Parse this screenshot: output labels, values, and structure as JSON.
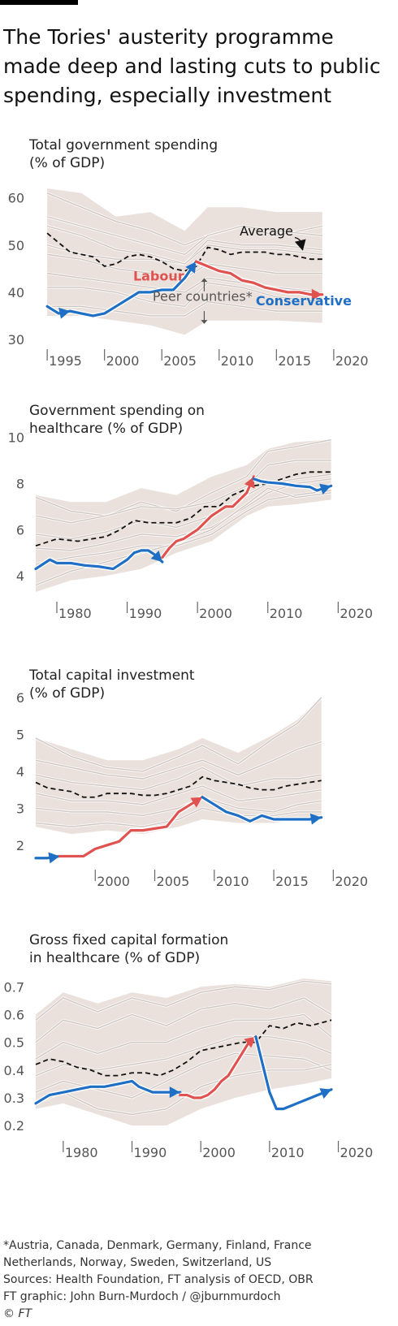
{
  "headline": "The Tories' austerity programme made deep and lasting cuts to public spending, especially investment",
  "colors": {
    "labour": "#e0524f",
    "conservative": "#1f6fc5",
    "average": "#111111",
    "peer_band": "#ebe1dc",
    "peer_lines": "#cfc6c1"
  },
  "chart_data": [
    {
      "type": "line",
      "title": [
        "Total government spending",
        "(% of GDP)"
      ],
      "xticks": [
        1995,
        2000,
        2005,
        2010,
        2015,
        2020
      ],
      "xlim": [
        1994,
        2021
      ],
      "yticks": [
        30,
        40,
        50,
        60
      ],
      "ylim": [
        30,
        62
      ],
      "series": [
        {
          "name": "Average",
          "x": [
            1995,
            1996,
            1997,
            1998,
            1999,
            2000,
            2001,
            2002,
            2003,
            2004,
            2005,
            2006,
            2007,
            2008,
            2009,
            2010,
            2011,
            2012,
            2013,
            2014,
            2015,
            2016,
            2017,
            2018,
            2019
          ],
          "y": [
            52.5,
            50.5,
            48.5,
            48,
            47.5,
            45.5,
            46,
            47.5,
            48,
            47.5,
            46.5,
            45,
            44.5,
            45.5,
            49.5,
            49,
            48,
            48.5,
            48.5,
            48.5,
            48,
            48,
            47.5,
            47,
            47
          ]
        },
        {
          "name": "Labour",
          "x": [
            1997,
            1998,
            1999,
            2000,
            2001,
            2002,
            2003,
            2004,
            2005,
            2006,
            2007,
            2008
          ],
          "y": [
            36,
            35.5,
            35,
            35.5,
            37,
            38.5,
            40,
            40,
            40.5,
            40.5,
            43,
            46.5
          ]
        },
        {
          "name": "Conservative",
          "x": [
            2008,
            2009,
            2010,
            2011,
            2012,
            2013,
            2014,
            2015,
            2016,
            2017,
            2018,
            2019
          ],
          "y": [
            46.5,
            45.5,
            44.5,
            44,
            42.5,
            42,
            41,
            40.5,
            40,
            40,
            39.5,
            39.5
          ]
        },
        {
          "name": "",
          "x": [
            1995,
            1996,
            1997
          ],
          "y": [
            37,
            35.5,
            36
          ]
        }
      ],
      "peer_band": {
        "x": [
          1995,
          1998,
          2001,
          2004,
          2007,
          2009,
          2012,
          2015,
          2019
        ],
        "low": [
          35,
          35,
          34,
          33,
          31,
          34,
          34,
          34,
          33.5
        ],
        "high": [
          62,
          61,
          56,
          57,
          53,
          58,
          58,
          57,
          57
        ]
      },
      "peer_lines": [
        [
          61,
          58,
          55,
          53,
          50,
          52,
          54,
          52,
          54
        ],
        [
          56,
          54,
          52,
          50,
          48,
          52,
          54,
          53,
          52
        ],
        [
          50,
          48,
          47,
          47,
          46,
          51,
          50,
          50,
          49
        ],
        [
          48,
          47,
          45,
          44,
          43,
          46,
          45,
          44,
          44
        ],
        [
          44,
          43,
          42,
          41,
          40,
          43,
          42,
          41,
          40
        ],
        [
          41,
          41,
          40,
          38,
          37,
          42,
          41,
          39,
          38
        ],
        [
          37,
          37,
          36,
          35,
          35,
          38,
          37,
          36,
          36
        ],
        [
          54,
          52,
          49,
          48,
          46,
          50,
          49,
          49,
          48
        ]
      ],
      "annotations": [
        {
          "text": "Average",
          "x": 2011.8,
          "y": 52,
          "color": "#111111",
          "weight": "normal"
        },
        {
          "text": "Labour",
          "x": 2002.5,
          "y": 42.5,
          "color": "#e0524f",
          "weight": "bold"
        },
        {
          "text": "Peer countries*",
          "x": 2004.2,
          "y": 38.2,
          "color": "#555555",
          "weight": "normal"
        },
        {
          "text": "Conservative",
          "x": 2013.2,
          "y": 37.2,
          "color": "#1f6fc5",
          "weight": "bold"
        }
      ]
    },
    {
      "type": "line",
      "title": [
        "Government spending on",
        "healthcare (% of GDP)"
      ],
      "xticks": [
        1980,
        1990,
        2000,
        2010,
        2020
      ],
      "xlim": [
        1977,
        2021
      ],
      "yticks": [
        4,
        6,
        8,
        10
      ],
      "ylim": [
        3.3,
        10.2
      ],
      "series": [
        {
          "name": "Average",
          "x": [
            1977,
            1980,
            1983,
            1985,
            1987,
            1989,
            1991,
            1993,
            1995,
            1997,
            1999,
            2001,
            2003,
            2005,
            2008,
            2010,
            2012,
            2014,
            2016,
            2019
          ],
          "y": [
            5.3,
            5.6,
            5.5,
            5.6,
            5.7,
            6,
            6.4,
            6.3,
            6.3,
            6.3,
            6.5,
            7,
            7,
            7.5,
            7.9,
            8,
            8.2,
            8.4,
            8.5,
            8.5
          ]
        },
        {
          "name": "",
          "x": [
            1977,
            1979,
            1980,
            1982,
            1984,
            1986,
            1988,
            1990,
            1991,
            1992,
            1993,
            1994,
            1995
          ],
          "y": [
            4.3,
            4.7,
            4.55,
            4.55,
            4.45,
            4.4,
            4.3,
            4.7,
            5,
            5.1,
            5.1,
            4.9,
            4.6
          ]
        },
        {
          "name": "",
          "x": [
            1995,
            1996,
            1997,
            1998,
            1999,
            2000,
            2001,
            2002,
            2003,
            2004,
            2005,
            2006,
            2007,
            2008
          ],
          "y": [
            4.8,
            5.2,
            5.5,
            5.6,
            5.8,
            6,
            6.3,
            6.6,
            6.8,
            7,
            7,
            7.3,
            7.6,
            8.3
          ]
        },
        {
          "name": "",
          "x": [
            2008,
            2009,
            2010,
            2012,
            2014,
            2016,
            2017,
            2019
          ],
          "y": [
            8.2,
            8.1,
            8.05,
            8,
            7.9,
            7.85,
            7.7,
            7.9
          ]
        }
      ],
      "peer_band": {
        "x": [
          1977,
          1982,
          1987,
          1992,
          1997,
          2002,
          2007,
          2010,
          2014,
          2019
        ],
        "low": [
          3.3,
          3.8,
          4,
          4.3,
          5,
          5.5,
          6.6,
          7,
          7.1,
          7.3
        ],
        "high": [
          7.5,
          7.2,
          7.2,
          7.8,
          7.5,
          8.3,
          8.8,
          9.5,
          9.8,
          9.9
        ]
      },
      "peer_lines": [
        [
          7.4,
          6.8,
          6.6,
          7.2,
          6.8,
          7.6,
          8.3,
          9.4,
          9.6,
          9.9
        ],
        [
          6.6,
          6.3,
          6.6,
          7,
          6.9,
          7.2,
          7.9,
          8.8,
          9,
          9
        ],
        [
          5.8,
          5.6,
          5.9,
          6.4,
          6.1,
          6.6,
          7.5,
          8,
          8.2,
          8.4
        ],
        [
          5.2,
          5.1,
          5.4,
          5.8,
          5.7,
          6.1,
          7,
          7.6,
          8,
          8.2
        ],
        [
          4.5,
          4.8,
          5,
          5.3,
          5.3,
          5.8,
          6.8,
          7.3,
          7.5,
          7.7
        ],
        [
          3.6,
          4.2,
          4.6,
          5,
          5.4,
          6,
          7.1,
          7.8,
          7.4,
          7.6
        ]
      ],
      "annotations": []
    },
    {
      "type": "line",
      "title": [
        "Total capital investment",
        "(% of GDP)"
      ],
      "xticks": [
        2000,
        2005,
        2010,
        2015,
        2020
      ],
      "xlim": [
        1995,
        2021
      ],
      "yticks": [
        2,
        3,
        4,
        5,
        6
      ],
      "ylim": [
        1.6,
        6
      ],
      "series": [
        {
          "name": "Average",
          "x": [
            1995,
            1996,
            1997,
            1998,
            1999,
            2000,
            2001,
            2002,
            2003,
            2004,
            2005,
            2006,
            2007,
            2008,
            2009,
            2010,
            2011,
            2012,
            2013,
            2014,
            2015,
            2016,
            2017,
            2018,
            2019
          ],
          "y": [
            3.7,
            3.55,
            3.5,
            3.45,
            3.3,
            3.3,
            3.4,
            3.4,
            3.4,
            3.35,
            3.35,
            3.4,
            3.5,
            3.6,
            3.85,
            3.75,
            3.7,
            3.65,
            3.55,
            3.5,
            3.5,
            3.6,
            3.65,
            3.7,
            3.75
          ]
        },
        {
          "name": "",
          "x": [
            1995,
            1996,
            1997
          ],
          "y": [
            1.65,
            1.65,
            1.7
          ]
        },
        {
          "name": "",
          "x": [
            1997,
            1998,
            1999,
            2000,
            2001,
            2002,
            2003,
            2004,
            2005,
            2006,
            2007,
            2008,
            2009
          ],
          "y": [
            1.7,
            1.7,
            1.7,
            1.9,
            2,
            2.1,
            2.4,
            2.4,
            2.45,
            2.5,
            2.9,
            3.1,
            3.3
          ]
        },
        {
          "name": "",
          "x": [
            2009,
            2010,
            2011,
            2012,
            2013,
            2014,
            2015,
            2016,
            2017,
            2018,
            2019
          ],
          "y": [
            3.3,
            3.1,
            2.9,
            2.8,
            2.65,
            2.8,
            2.7,
            2.7,
            2.7,
            2.7,
            2.75
          ]
        }
      ],
      "peer_band": {
        "x": [
          1995,
          1998,
          2001,
          2004,
          2007,
          2009,
          2012,
          2015,
          2017,
          2019
        ],
        "low": [
          2.5,
          2.3,
          2.4,
          2.3,
          2.5,
          2.7,
          2.6,
          2.6,
          2.7,
          2.7
        ],
        "high": [
          4.9,
          4.6,
          4.3,
          4.3,
          4.6,
          4.9,
          4.5,
          5,
          5.4,
          6
        ]
      },
      "peer_lines": [
        [
          4.9,
          4.4,
          4.1,
          4,
          4.4,
          4.7,
          4.2,
          4.9,
          5.3,
          6
        ],
        [
          4.3,
          4.1,
          3.9,
          3.8,
          4.1,
          4.3,
          3.9,
          4.3,
          4.6,
          4.8
        ],
        [
          3.9,
          3.7,
          3.6,
          3.5,
          3.8,
          4.1,
          3.6,
          3.8,
          3.8,
          3.9
        ],
        [
          3.4,
          3.2,
          3.2,
          3.1,
          3.4,
          3.6,
          3.2,
          3.3,
          3.4,
          3.5
        ],
        [
          3,
          2.9,
          2.9,
          2.8,
          3,
          3.3,
          3,
          2.9,
          3.1,
          3.2
        ],
        [
          2.6,
          2.5,
          2.6,
          2.5,
          2.7,
          3,
          2.8,
          2.8,
          2.9,
          2.9
        ]
      ],
      "annotations": []
    },
    {
      "type": "line",
      "title": [
        "Gross fixed capital formation",
        "in healthcare (% of GDP)"
      ],
      "xticks": [
        1980,
        1990,
        2000,
        2010,
        2020
      ],
      "xlim": [
        1976,
        2021
      ],
      "yticks": [
        0.2,
        0.3,
        0.4,
        0.5,
        0.6,
        0.7
      ],
      "ylim": [
        0.18,
        0.73
      ],
      "series": [
        {
          "name": "Average",
          "x": [
            1976,
            1978,
            1980,
            1982,
            1984,
            1986,
            1988,
            1990,
            1992,
            1994,
            1996,
            1998,
            2000,
            2002,
            2004,
            2006,
            2008,
            2010,
            2012,
            2014,
            2016,
            2019
          ],
          "y": [
            0.42,
            0.44,
            0.43,
            0.41,
            0.4,
            0.38,
            0.38,
            0.39,
            0.39,
            0.38,
            0.4,
            0.43,
            0.47,
            0.48,
            0.49,
            0.5,
            0.5,
            0.56,
            0.55,
            0.57,
            0.56,
            0.58
          ]
        },
        {
          "name": "",
          "x": [
            1976,
            1978,
            1980,
            1982,
            1984,
            1986,
            1988,
            1990,
            1991,
            1993,
            1995,
            1997
          ],
          "y": [
            0.28,
            0.31,
            0.32,
            0.33,
            0.34,
            0.34,
            0.35,
            0.36,
            0.34,
            0.32,
            0.32,
            0.32
          ]
        },
        {
          "name": "",
          "x": [
            1997,
            1998,
            1999,
            2000,
            2001,
            2002,
            2003,
            2004,
            2005,
            2006,
            2007,
            2008
          ],
          "y": [
            0.31,
            0.31,
            0.3,
            0.3,
            0.31,
            0.33,
            0.36,
            0.38,
            0.42,
            0.46,
            0.5,
            0.52
          ]
        },
        {
          "name": "",
          "x": [
            2008,
            2009,
            2010,
            2011,
            2012,
            2013,
            2014,
            2016,
            2018,
            2019
          ],
          "y": [
            0.52,
            0.42,
            0.32,
            0.26,
            0.26,
            0.27,
            0.28,
            0.3,
            0.32,
            0.33
          ]
        }
      ],
      "peer_band": {
        "x": [
          1976,
          1980,
          1985,
          1990,
          1995,
          2000,
          2005,
          2010,
          2015,
          2019
        ],
        "low": [
          0.26,
          0.28,
          0.24,
          0.2,
          0.2,
          0.26,
          0.3,
          0.33,
          0.35,
          0.37
        ],
        "high": [
          0.6,
          0.68,
          0.64,
          0.68,
          0.66,
          0.7,
          0.71,
          0.7,
          0.73,
          0.72
        ]
      },
      "peer_lines": [
        [
          0.58,
          0.66,
          0.61,
          0.66,
          0.63,
          0.68,
          0.7,
          0.69,
          0.72,
          0.71
        ],
        [
          0.5,
          0.58,
          0.55,
          0.6,
          0.56,
          0.62,
          0.64,
          0.62,
          0.66,
          0.6
        ],
        [
          0.44,
          0.5,
          0.46,
          0.5,
          0.5,
          0.55,
          0.58,
          0.58,
          0.6,
          0.52
        ],
        [
          0.38,
          0.42,
          0.4,
          0.42,
          0.44,
          0.48,
          0.52,
          0.52,
          0.5,
          0.46
        ],
        [
          0.32,
          0.36,
          0.33,
          0.3,
          0.36,
          0.42,
          0.46,
          0.45,
          0.44,
          0.4
        ],
        [
          0.28,
          0.32,
          0.26,
          0.24,
          0.26,
          0.34,
          0.38,
          0.4,
          0.4,
          0.42
        ]
      ],
      "annotations": []
    }
  ],
  "footer": {
    "note1": "*Austria, Canada, Denmark, Germany, Finland, France",
    "note2": "Netherlands, Norway, Sweden, Switzerland, US",
    "sources": "Sources: Health Foundation, FT analysis of OECD, OBR",
    "credit": "FT graphic: John Burn-Murdoch / @jburnmurdoch",
    "copyright": "© FT"
  }
}
